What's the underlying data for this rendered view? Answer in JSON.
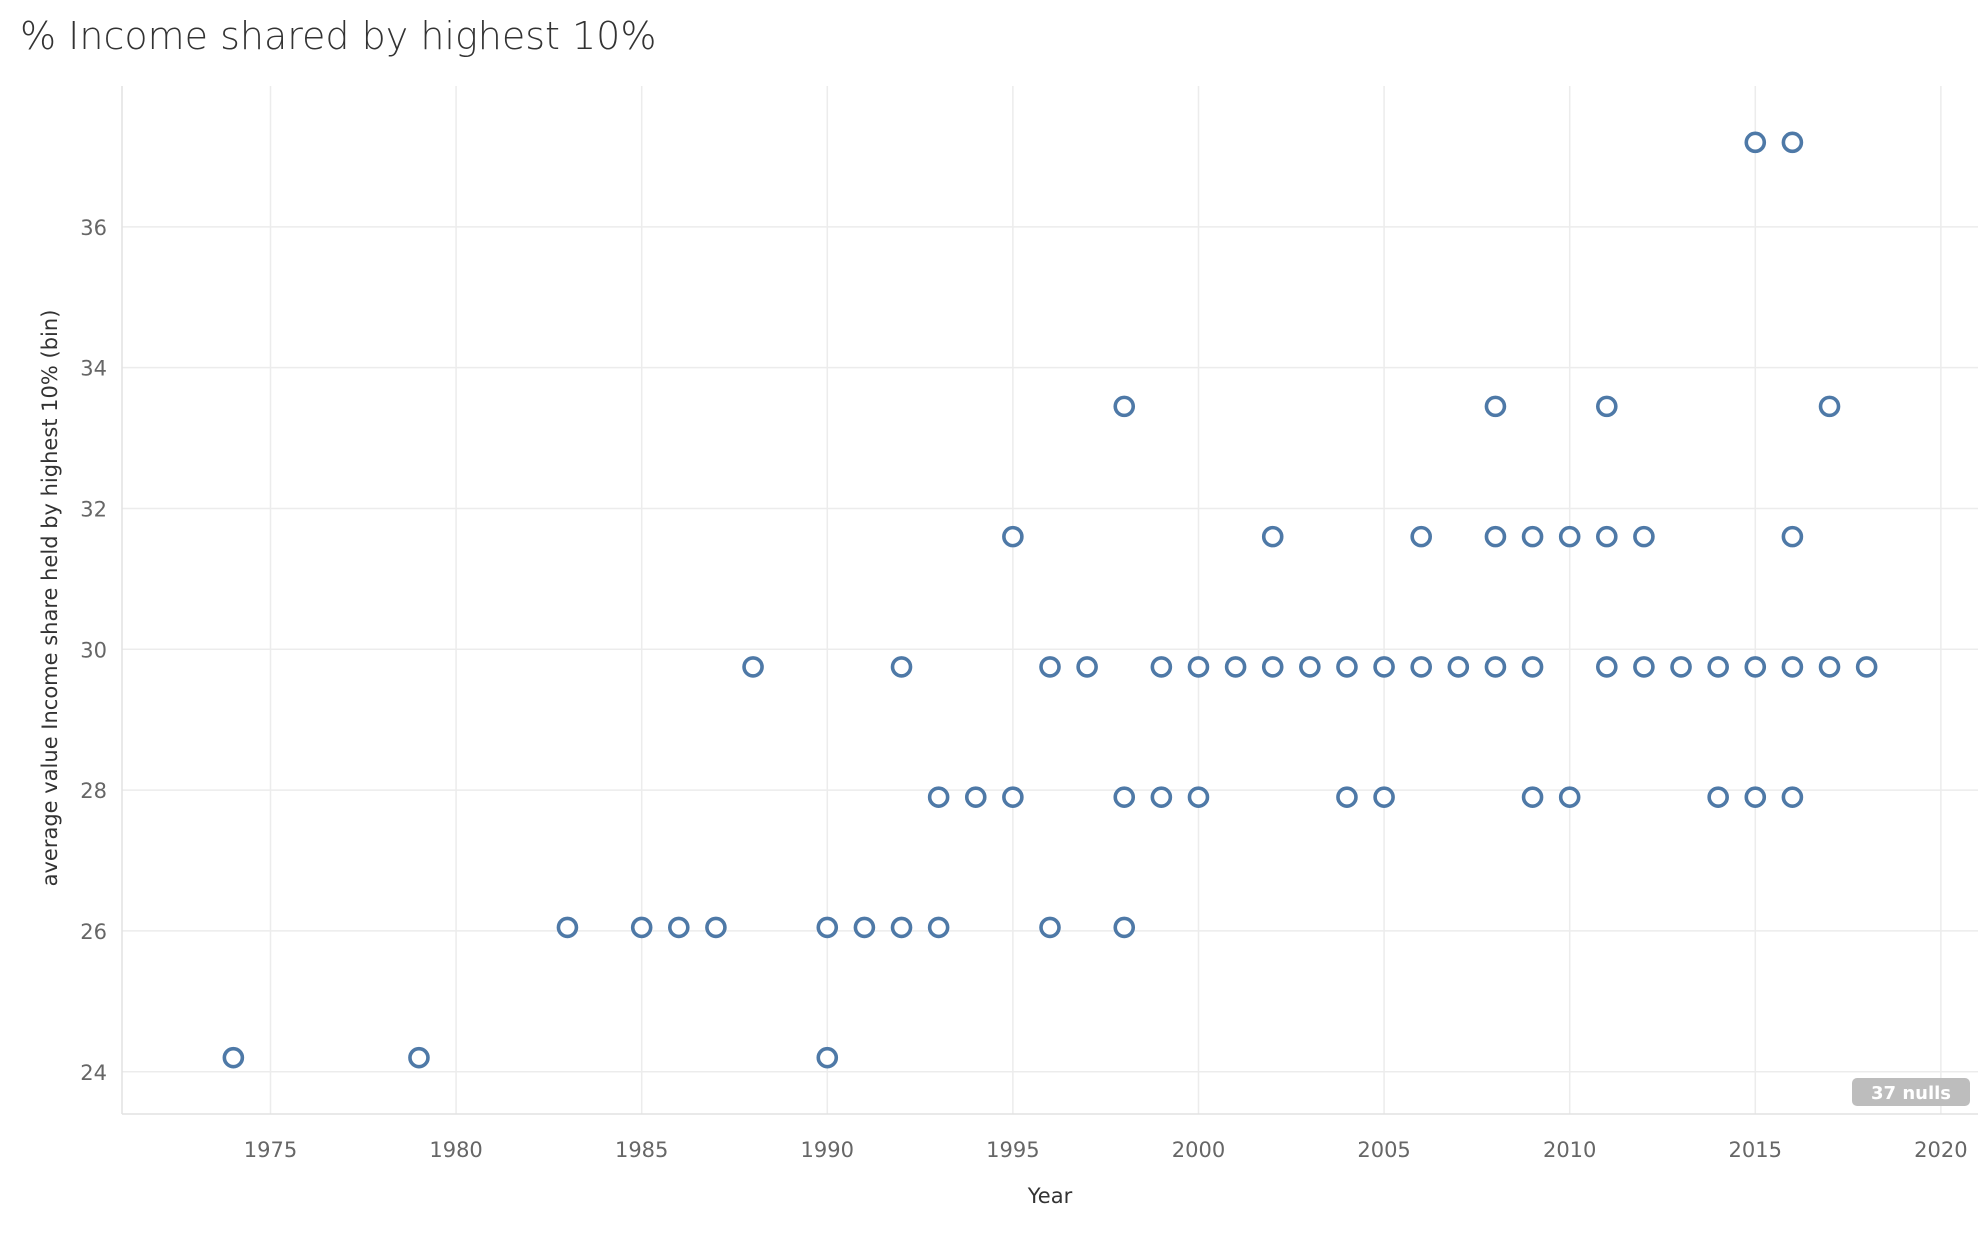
{
  "chart_data": {
    "type": "scatter",
    "title": "% Income shared by highest 10%",
    "xlabel": "Year",
    "ylabel": "average value Income share held by highest 10% (bin)",
    "xlim": [
      1971,
      2021
    ],
    "ylim": [
      23.4,
      38
    ],
    "x_ticks": [
      1975,
      1980,
      1985,
      1990,
      1995,
      2000,
      2005,
      2010,
      2015,
      2020
    ],
    "y_ticks": [
      24,
      26,
      28,
      30,
      32,
      34,
      36
    ],
    "grid": true,
    "marker": "hollow-circle",
    "marker_color": "#4e79a7",
    "null_badge": "37 nulls",
    "points": [
      {
        "x": 1974,
        "y": 24.2
      },
      {
        "x": 1979,
        "y": 24.2
      },
      {
        "x": 1990,
        "y": 24.2
      },
      {
        "x": 1983,
        "y": 26.05
      },
      {
        "x": 1985,
        "y": 26.05
      },
      {
        "x": 1986,
        "y": 26.05
      },
      {
        "x": 1987,
        "y": 26.05
      },
      {
        "x": 1990,
        "y": 26.05
      },
      {
        "x": 1991,
        "y": 26.05
      },
      {
        "x": 1992,
        "y": 26.05
      },
      {
        "x": 1993,
        "y": 26.05
      },
      {
        "x": 1996,
        "y": 26.05
      },
      {
        "x": 1998,
        "y": 26.05
      },
      {
        "x": 1993,
        "y": 27.9
      },
      {
        "x": 1994,
        "y": 27.9
      },
      {
        "x": 1995,
        "y": 27.9
      },
      {
        "x": 1998,
        "y": 27.9
      },
      {
        "x": 1999,
        "y": 27.9
      },
      {
        "x": 2000,
        "y": 27.9
      },
      {
        "x": 2004,
        "y": 27.9
      },
      {
        "x": 2005,
        "y": 27.9
      },
      {
        "x": 2009,
        "y": 27.9
      },
      {
        "x": 2010,
        "y": 27.9
      },
      {
        "x": 2014,
        "y": 27.9
      },
      {
        "x": 2015,
        "y": 27.9
      },
      {
        "x": 2016,
        "y": 27.9
      },
      {
        "x": 1988,
        "y": 29.75
      },
      {
        "x": 1992,
        "y": 29.75
      },
      {
        "x": 1996,
        "y": 29.75
      },
      {
        "x": 1997,
        "y": 29.75
      },
      {
        "x": 1999,
        "y": 29.75
      },
      {
        "x": 2000,
        "y": 29.75
      },
      {
        "x": 2001,
        "y": 29.75
      },
      {
        "x": 2002,
        "y": 29.75
      },
      {
        "x": 2003,
        "y": 29.75
      },
      {
        "x": 2004,
        "y": 29.75
      },
      {
        "x": 2005,
        "y": 29.75
      },
      {
        "x": 2006,
        "y": 29.75
      },
      {
        "x": 2007,
        "y": 29.75
      },
      {
        "x": 2008,
        "y": 29.75
      },
      {
        "x": 2009,
        "y": 29.75
      },
      {
        "x": 2011,
        "y": 29.75
      },
      {
        "x": 2012,
        "y": 29.75
      },
      {
        "x": 2013,
        "y": 29.75
      },
      {
        "x": 2014,
        "y": 29.75
      },
      {
        "x": 2015,
        "y": 29.75
      },
      {
        "x": 2016,
        "y": 29.75
      },
      {
        "x": 2017,
        "y": 29.75
      },
      {
        "x": 2018,
        "y": 29.75
      },
      {
        "x": 1995,
        "y": 31.6
      },
      {
        "x": 2002,
        "y": 31.6
      },
      {
        "x": 2006,
        "y": 31.6
      },
      {
        "x": 2008,
        "y": 31.6
      },
      {
        "x": 2009,
        "y": 31.6
      },
      {
        "x": 2010,
        "y": 31.6
      },
      {
        "x": 2011,
        "y": 31.6
      },
      {
        "x": 2012,
        "y": 31.6
      },
      {
        "x": 2016,
        "y": 31.6
      },
      {
        "x": 1998,
        "y": 33.45
      },
      {
        "x": 2008,
        "y": 33.45
      },
      {
        "x": 2011,
        "y": 33.45
      },
      {
        "x": 2017,
        "y": 33.45
      },
      {
        "x": 2015,
        "y": 37.2
      },
      {
        "x": 2016,
        "y": 37.2
      }
    ]
  }
}
